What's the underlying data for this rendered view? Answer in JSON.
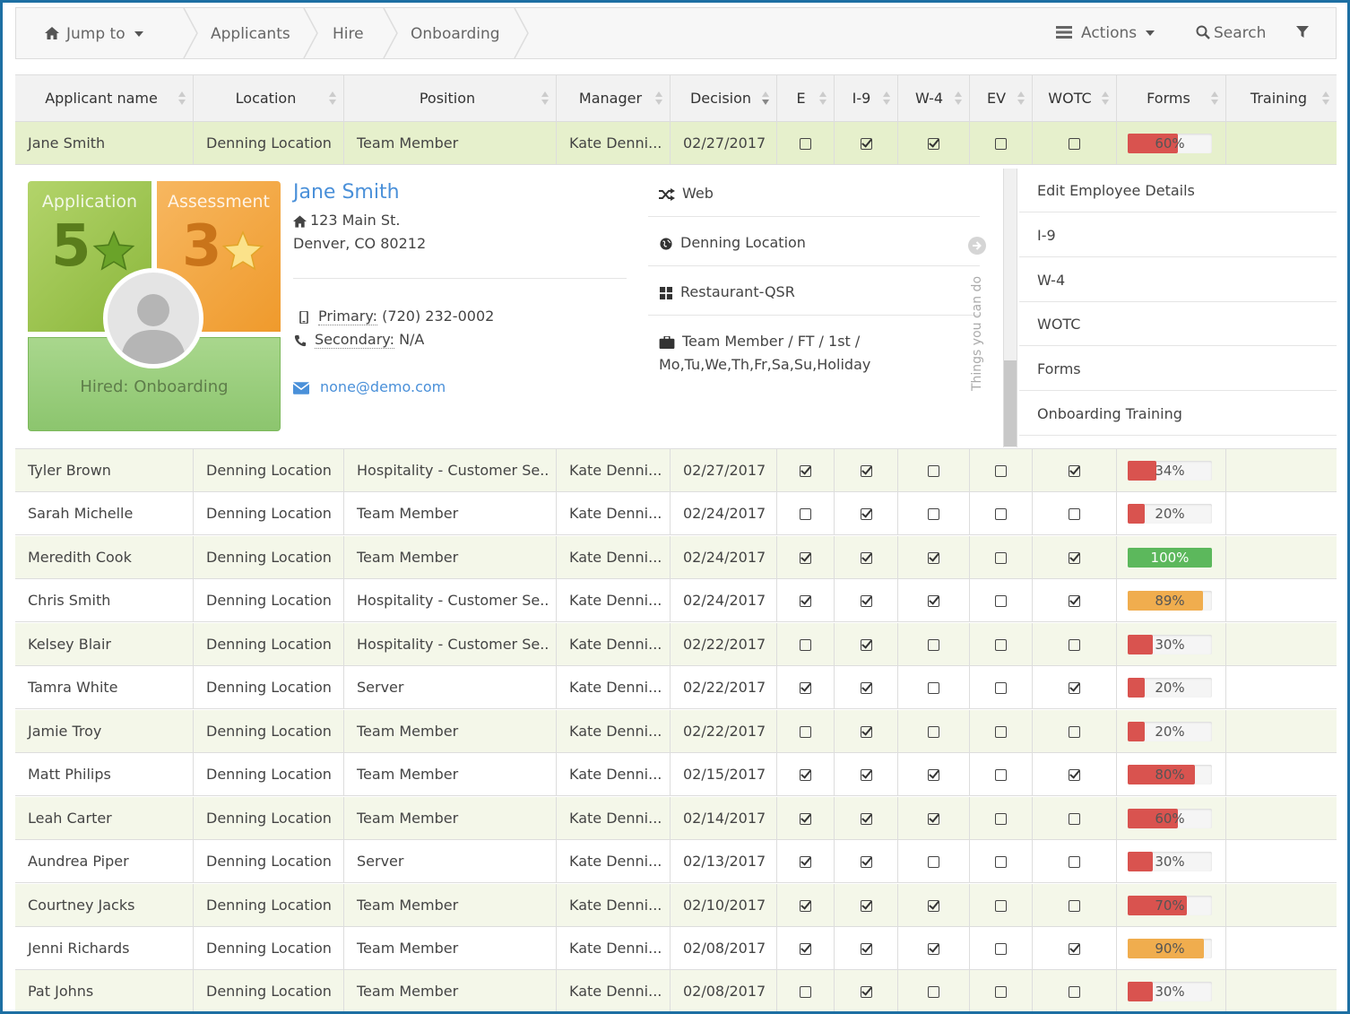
{
  "nav": {
    "jump_to": "Jump to",
    "breadcrumbs": [
      "Applicants",
      "Hire",
      "Onboarding"
    ],
    "actions": "Actions",
    "search": "Search"
  },
  "table": {
    "columns": [
      "Applicant name",
      "Location",
      "Position",
      "Manager",
      "Decision",
      "E",
      "I-9",
      "W-4",
      "EV",
      "WOTC",
      "Forms",
      "Training"
    ],
    "rows": [
      {
        "name": "Jane Smith",
        "location": "Denning Location",
        "position": "Team Member",
        "manager": "Kate Denni...",
        "decision": "02/27/2017",
        "e": false,
        "i9": true,
        "w4": true,
        "ev": false,
        "wotc": false,
        "forms": "60%",
        "forms_value": 60
      },
      {
        "name": "Tyler Brown",
        "location": "Denning Location",
        "position": "Hospitality - Customer Se..",
        "manager": "Kate Denni...",
        "decision": "02/27/2017",
        "e": true,
        "i9": true,
        "w4": false,
        "ev": false,
        "wotc": true,
        "forms": "34%",
        "forms_value": 34
      },
      {
        "name": "Sarah Michelle",
        "location": "Denning Location",
        "position": "Team Member",
        "manager": "Kate Denni...",
        "decision": "02/24/2017",
        "e": false,
        "i9": true,
        "w4": false,
        "ev": false,
        "wotc": false,
        "forms": "20%",
        "forms_value": 20
      },
      {
        "name": "Meredith Cook",
        "location": "Denning Location",
        "position": "Team Member",
        "manager": "Kate Denni...",
        "decision": "02/24/2017",
        "e": true,
        "i9": true,
        "w4": true,
        "ev": false,
        "wotc": true,
        "forms": "100%",
        "forms_value": 100
      },
      {
        "name": "Chris Smith",
        "location": "Denning Location",
        "position": "Hospitality - Customer Se..",
        "manager": "Kate Denni...",
        "decision": "02/24/2017",
        "e": true,
        "i9": true,
        "w4": true,
        "ev": false,
        "wotc": true,
        "forms": "89%",
        "forms_value": 89
      },
      {
        "name": "Kelsey Blair",
        "location": "Denning Location",
        "position": "Hospitality - Customer Se..",
        "manager": "Kate Denni...",
        "decision": "02/22/2017",
        "e": false,
        "i9": true,
        "w4": false,
        "ev": false,
        "wotc": false,
        "forms": "30%",
        "forms_value": 30
      },
      {
        "name": "Tamra White",
        "location": "Denning Location",
        "position": "Server",
        "manager": "Kate Denni...",
        "decision": "02/22/2017",
        "e": true,
        "i9": true,
        "w4": false,
        "ev": false,
        "wotc": true,
        "forms": "20%",
        "forms_value": 20
      },
      {
        "name": "Jamie Troy",
        "location": "Denning Location",
        "position": "Team Member",
        "manager": "Kate Denni...",
        "decision": "02/22/2017",
        "e": false,
        "i9": true,
        "w4": false,
        "ev": false,
        "wotc": false,
        "forms": "20%",
        "forms_value": 20
      },
      {
        "name": "Matt Philips",
        "location": "Denning Location",
        "position": "Team Member",
        "manager": "Kate Denni...",
        "decision": "02/15/2017",
        "e": true,
        "i9": true,
        "w4": true,
        "ev": false,
        "wotc": true,
        "forms": "80%",
        "forms_value": 80
      },
      {
        "name": "Leah Carter",
        "location": "Denning Location",
        "position": "Team Member",
        "manager": "Kate Denni...",
        "decision": "02/14/2017",
        "e": true,
        "i9": true,
        "w4": true,
        "ev": false,
        "wotc": false,
        "forms": "60%",
        "forms_value": 60
      },
      {
        "name": "Aundrea Piper",
        "location": "Denning Location",
        "position": "Server",
        "manager": "Kate Denni...",
        "decision": "02/13/2017",
        "e": true,
        "i9": true,
        "w4": false,
        "ev": false,
        "wotc": false,
        "forms": "30%",
        "forms_value": 30
      },
      {
        "name": "Courtney Jacks",
        "location": "Denning Location",
        "position": "Team Member",
        "manager": "Kate Denni...",
        "decision": "02/10/2017",
        "e": true,
        "i9": true,
        "w4": true,
        "ev": false,
        "wotc": false,
        "forms": "70%",
        "forms_value": 70
      },
      {
        "name": "Jenni Richards",
        "location": "Denning Location",
        "position": "Team Member",
        "manager": "Kate Denni...",
        "decision": "02/08/2017",
        "e": true,
        "i9": true,
        "w4": true,
        "ev": false,
        "wotc": true,
        "forms": "90%",
        "forms_value": 90
      },
      {
        "name": "Pat Johns",
        "location": "Denning Location",
        "position": "Team Member",
        "manager": "Kate Denni...",
        "decision": "02/08/2017",
        "e": false,
        "i9": true,
        "w4": false,
        "ev": false,
        "wotc": false,
        "forms": "30%",
        "forms_value": 30
      }
    ]
  },
  "detail": {
    "application_label": "Application",
    "application_score": "5",
    "assessment_label": "Assessment",
    "assessment_score": "3",
    "status": "Hired: Onboarding",
    "name": "Jane Smith",
    "address1": "123 Main St.",
    "address2": "Denver, CO 80212",
    "primary_label": "Primary:",
    "primary_phone": "(720) 232-0002",
    "secondary_label": "Secondary:",
    "secondary_phone": "N/A",
    "email": "none@demo.com",
    "source": "Web",
    "location": "Denning Location",
    "category": "Restaurant-QSR",
    "job_line1": "Team Member / FT / 1st /",
    "job_line2": "Mo,Tu,We,Th,Fr,Sa,Su,Holiday",
    "side_label": "Things you can do",
    "actions": [
      "Edit Employee Details",
      "I-9",
      "W-4",
      "WOTC",
      "Forms",
      "Onboarding Training"
    ]
  },
  "colors": {
    "red": "#d9534f",
    "green": "#5cb85c",
    "orange": "#f0ad4e",
    "accent": "#4a90d9",
    "frame": "#1d6fa3"
  }
}
